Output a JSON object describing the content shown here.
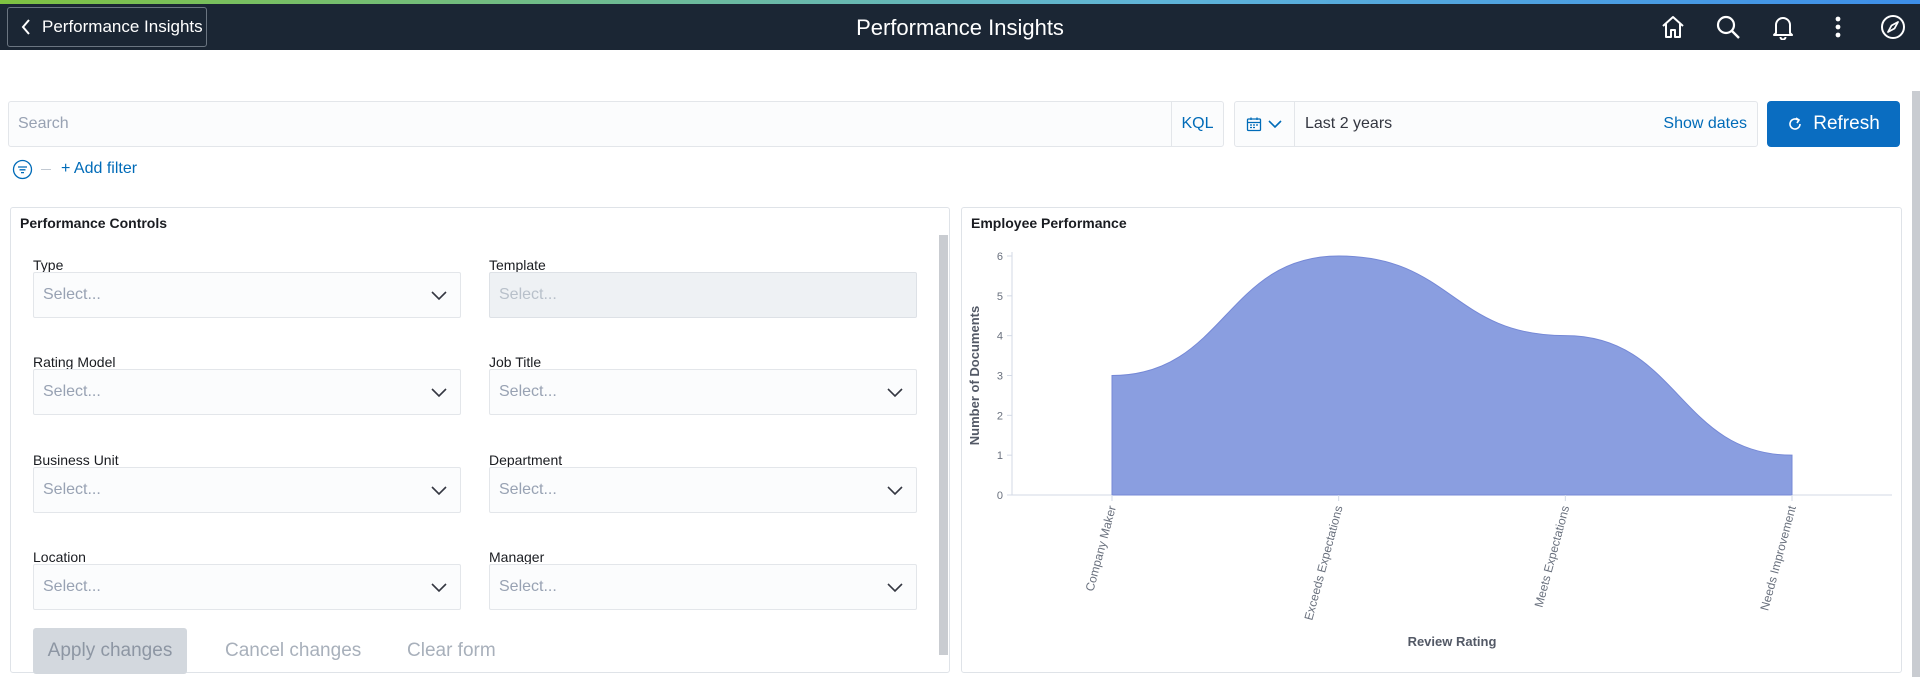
{
  "header": {
    "back_label": "Performance Insights",
    "title": "Performance Insights",
    "icons": [
      "home-icon",
      "search-icon",
      "bell-icon",
      "more-vertical-icon",
      "compass-icon"
    ]
  },
  "query": {
    "search_placeholder": "Search",
    "language": "KQL",
    "date_range": "Last 2 years",
    "show_dates": "Show dates",
    "refresh": "Refresh",
    "add_filter": "+ Add filter"
  },
  "controls": {
    "title": "Performance Controls",
    "fields": [
      {
        "label": "Type",
        "placeholder": "Select..."
      },
      {
        "label": "Template",
        "placeholder": "Select...",
        "disabled": true
      },
      {
        "label": "Rating Model",
        "placeholder": "Select..."
      },
      {
        "label": "Job Title",
        "placeholder": "Select..."
      },
      {
        "label": "Business Unit",
        "placeholder": "Select..."
      },
      {
        "label": "Department",
        "placeholder": "Select..."
      },
      {
        "label": "Location",
        "placeholder": "Select..."
      },
      {
        "label": "Manager",
        "placeholder": "Select..."
      }
    ],
    "apply": "Apply changes",
    "cancel": "Cancel changes",
    "clear": "Clear form"
  },
  "chart_panel": {
    "title": "Employee Performance"
  },
  "chart_data": {
    "type": "area",
    "categories": [
      "Company Maker",
      "Exceeds Expectations",
      "Meets Expectations",
      "Needs Improvement"
    ],
    "values": [
      3,
      6,
      4,
      1
    ],
    "xlabel": "Review Rating",
    "ylabel": "Number of Documents",
    "ylim": [
      0,
      6
    ],
    "yticks": [
      0,
      1,
      2,
      3,
      4,
      5,
      6
    ],
    "color": "#8a9ee0",
    "grid": false
  }
}
